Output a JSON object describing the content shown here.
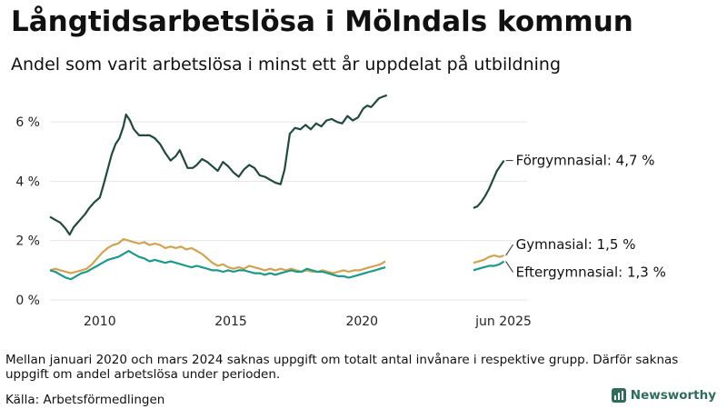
{
  "title": "Långtidsarbetslösa i Mölndals kommun",
  "subtitle": "Andel som varit arbetslösa i minst ett år uppdelat på utbildning",
  "footnote": "Mellan januari 2020 och mars 2024 saknas uppgift om totalt antal invånare i respektive grupp. Därför saknas uppgift om andel arbetslösa under perioden.",
  "source": "Källa: Arbetsförmedlingen",
  "brand": "Newsworthy",
  "colors": {
    "forgymnasial": "#1f4a40",
    "gymnasial": "#d4a24c",
    "eftergymnasial": "#1a9a8a",
    "brand": "#2c6e5a"
  },
  "chart_data": {
    "type": "line",
    "x_ticks": [
      {
        "x": 2010.0,
        "label": "2010"
      },
      {
        "x": 2015.0,
        "label": "2015"
      },
      {
        "x": 2020.0,
        "label": "2020"
      },
      {
        "x": 2025.4,
        "label": "jun 2025"
      }
    ],
    "y_ticks": [
      {
        "y": 0,
        "label": "0 %"
      },
      {
        "y": 2,
        "label": "2 %"
      },
      {
        "y": 4,
        "label": "4 %"
      },
      {
        "y": 6,
        "label": "6 %"
      }
    ],
    "xlim": [
      2008.1,
      2026.3
    ],
    "ylim": [
      0,
      7.2
    ],
    "grid": true,
    "series": [
      {
        "key": "forgymnasial",
        "label": "Förgymnasial: 4,7 %",
        "segments": [
          [
            [
              2008.1,
              2.8
            ],
            [
              2008.3,
              2.7
            ],
            [
              2008.5,
              2.6
            ],
            [
              2008.7,
              2.4
            ],
            [
              2008.85,
              2.2
            ],
            [
              2009.0,
              2.45
            ],
            [
              2009.15,
              2.6
            ],
            [
              2009.3,
              2.75
            ],
            [
              2009.45,
              2.9
            ],
            [
              2009.6,
              3.1
            ],
            [
              2009.8,
              3.3
            ],
            [
              2010.0,
              3.45
            ],
            [
              2010.15,
              3.9
            ],
            [
              2010.3,
              4.4
            ],
            [
              2010.45,
              4.9
            ],
            [
              2010.6,
              5.25
            ],
            [
              2010.75,
              5.45
            ],
            [
              2010.9,
              5.85
            ],
            [
              2011.0,
              6.25
            ],
            [
              2011.15,
              6.05
            ],
            [
              2011.3,
              5.75
            ],
            [
              2011.5,
              5.55
            ],
            [
              2011.7,
              5.55
            ],
            [
              2011.9,
              5.55
            ],
            [
              2012.1,
              5.45
            ],
            [
              2012.3,
              5.25
            ],
            [
              2012.5,
              4.95
            ],
            [
              2012.7,
              4.7
            ],
            [
              2012.9,
              4.85
            ],
            [
              2013.05,
              5.05
            ],
            [
              2013.2,
              4.75
            ],
            [
              2013.35,
              4.45
            ],
            [
              2013.55,
              4.45
            ],
            [
              2013.7,
              4.55
            ],
            [
              2013.9,
              4.75
            ],
            [
              2014.1,
              4.65
            ],
            [
              2014.3,
              4.5
            ],
            [
              2014.5,
              4.35
            ],
            [
              2014.7,
              4.65
            ],
            [
              2014.9,
              4.5
            ],
            [
              2015.1,
              4.3
            ],
            [
              2015.3,
              4.15
            ],
            [
              2015.5,
              4.4
            ],
            [
              2015.7,
              4.55
            ],
            [
              2015.9,
              4.45
            ],
            [
              2016.1,
              4.2
            ],
            [
              2016.3,
              4.15
            ],
            [
              2016.5,
              4.05
            ],
            [
              2016.7,
              3.95
            ],
            [
              2016.9,
              3.9
            ],
            [
              2017.05,
              4.4
            ],
            [
              2017.25,
              5.6
            ],
            [
              2017.45,
              5.8
            ],
            [
              2017.65,
              5.75
            ],
            [
              2017.85,
              5.9
            ],
            [
              2018.05,
              5.75
            ],
            [
              2018.25,
              5.95
            ],
            [
              2018.45,
              5.85
            ],
            [
              2018.65,
              6.05
            ],
            [
              2018.85,
              6.1
            ],
            [
              2019.05,
              6.0
            ],
            [
              2019.25,
              5.95
            ],
            [
              2019.45,
              6.2
            ],
            [
              2019.65,
              6.05
            ],
            [
              2019.85,
              6.15
            ],
            [
              2020.05,
              6.45
            ],
            [
              2020.2,
              6.55
            ],
            [
              2020.35,
              6.5
            ],
            [
              2020.5,
              6.65
            ],
            [
              2020.65,
              6.8
            ],
            [
              2020.8,
              6.85
            ],
            [
              2020.95,
              6.9
            ]
          ],
          [
            [
              2024.25,
              3.1
            ],
            [
              2024.4,
              3.15
            ],
            [
              2024.55,
              3.3
            ],
            [
              2024.7,
              3.5
            ],
            [
              2024.85,
              3.75
            ],
            [
              2025.0,
              4.05
            ],
            [
              2025.15,
              4.35
            ],
            [
              2025.3,
              4.55
            ],
            [
              2025.42,
              4.7
            ]
          ]
        ]
      },
      {
        "key": "gymnasial",
        "label": "Gymnasial: 1,5 %",
        "segments": [
          [
            [
              2008.1,
              1.0
            ],
            [
              2008.3,
              1.05
            ],
            [
              2008.5,
              1.0
            ],
            [
              2008.7,
              0.95
            ],
            [
              2008.9,
              0.9
            ],
            [
              2009.1,
              0.95
            ],
            [
              2009.3,
              1.0
            ],
            [
              2009.5,
              1.05
            ],
            [
              2009.7,
              1.2
            ],
            [
              2009.9,
              1.4
            ],
            [
              2010.1,
              1.6
            ],
            [
              2010.3,
              1.75
            ],
            [
              2010.5,
              1.85
            ],
            [
              2010.7,
              1.9
            ],
            [
              2010.9,
              2.05
            ],
            [
              2011.1,
              2.0
            ],
            [
              2011.3,
              1.95
            ],
            [
              2011.5,
              1.9
            ],
            [
              2011.7,
              1.95
            ],
            [
              2011.9,
              1.85
            ],
            [
              2012.1,
              1.9
            ],
            [
              2012.3,
              1.85
            ],
            [
              2012.5,
              1.75
            ],
            [
              2012.7,
              1.8
            ],
            [
              2012.9,
              1.75
            ],
            [
              2013.1,
              1.8
            ],
            [
              2013.3,
              1.7
            ],
            [
              2013.5,
              1.75
            ],
            [
              2013.7,
              1.65
            ],
            [
              2013.9,
              1.55
            ],
            [
              2014.1,
              1.4
            ],
            [
              2014.3,
              1.25
            ],
            [
              2014.5,
              1.15
            ],
            [
              2014.7,
              1.2
            ],
            [
              2014.9,
              1.1
            ],
            [
              2015.1,
              1.05
            ],
            [
              2015.3,
              1.1
            ],
            [
              2015.5,
              1.05
            ],
            [
              2015.7,
              1.15
            ],
            [
              2015.9,
              1.1
            ],
            [
              2016.1,
              1.05
            ],
            [
              2016.3,
              1.0
            ],
            [
              2016.5,
              1.05
            ],
            [
              2016.7,
              1.0
            ],
            [
              2016.9,
              1.05
            ],
            [
              2017.1,
              1.0
            ],
            [
              2017.3,
              1.05
            ],
            [
              2017.5,
              1.0
            ],
            [
              2017.7,
              0.95
            ],
            [
              2017.9,
              1.0
            ],
            [
              2018.1,
              0.95
            ],
            [
              2018.3,
              0.95
            ],
            [
              2018.5,
              1.0
            ],
            [
              2018.7,
              0.95
            ],
            [
              2018.9,
              0.9
            ],
            [
              2019.1,
              0.95
            ],
            [
              2019.3,
              1.0
            ],
            [
              2019.5,
              0.95
            ],
            [
              2019.7,
              1.0
            ],
            [
              2019.9,
              1.0
            ],
            [
              2020.1,
              1.05
            ],
            [
              2020.3,
              1.1
            ],
            [
              2020.5,
              1.15
            ],
            [
              2020.7,
              1.2
            ],
            [
              2020.9,
              1.3
            ]
          ],
          [
            [
              2024.25,
              1.25
            ],
            [
              2024.45,
              1.3
            ],
            [
              2024.65,
              1.35
            ],
            [
              2024.85,
              1.45
            ],
            [
              2025.05,
              1.5
            ],
            [
              2025.25,
              1.45
            ],
            [
              2025.42,
              1.5
            ]
          ]
        ]
      },
      {
        "key": "eftergymnasial",
        "label": "Eftergymnasial: 1,3 %",
        "segments": [
          [
            [
              2008.1,
              1.0
            ],
            [
              2008.3,
              0.95
            ],
            [
              2008.5,
              0.85
            ],
            [
              2008.7,
              0.75
            ],
            [
              2008.9,
              0.7
            ],
            [
              2009.1,
              0.8
            ],
            [
              2009.3,
              0.9
            ],
            [
              2009.5,
              0.95
            ],
            [
              2009.7,
              1.05
            ],
            [
              2009.9,
              1.15
            ],
            [
              2010.1,
              1.25
            ],
            [
              2010.3,
              1.35
            ],
            [
              2010.5,
              1.4
            ],
            [
              2010.7,
              1.45
            ],
            [
              2010.9,
              1.55
            ],
            [
              2011.1,
              1.65
            ],
            [
              2011.3,
              1.55
            ],
            [
              2011.5,
              1.45
            ],
            [
              2011.7,
              1.4
            ],
            [
              2011.9,
              1.3
            ],
            [
              2012.1,
              1.35
            ],
            [
              2012.3,
              1.3
            ],
            [
              2012.5,
              1.25
            ],
            [
              2012.7,
              1.3
            ],
            [
              2012.9,
              1.25
            ],
            [
              2013.1,
              1.2
            ],
            [
              2013.3,
              1.15
            ],
            [
              2013.5,
              1.1
            ],
            [
              2013.7,
              1.15
            ],
            [
              2013.9,
              1.1
            ],
            [
              2014.1,
              1.05
            ],
            [
              2014.3,
              1.0
            ],
            [
              2014.5,
              1.0
            ],
            [
              2014.7,
              0.95
            ],
            [
              2014.9,
              1.0
            ],
            [
              2015.1,
              0.95
            ],
            [
              2015.3,
              1.0
            ],
            [
              2015.5,
              1.0
            ],
            [
              2015.7,
              0.95
            ],
            [
              2015.9,
              0.9
            ],
            [
              2016.1,
              0.9
            ],
            [
              2016.3,
              0.85
            ],
            [
              2016.5,
              0.9
            ],
            [
              2016.7,
              0.85
            ],
            [
              2016.9,
              0.9
            ],
            [
              2017.1,
              0.95
            ],
            [
              2017.3,
              1.0
            ],
            [
              2017.5,
              0.95
            ],
            [
              2017.7,
              0.95
            ],
            [
              2017.9,
              1.05
            ],
            [
              2018.1,
              1.0
            ],
            [
              2018.3,
              0.95
            ],
            [
              2018.5,
              0.95
            ],
            [
              2018.7,
              0.9
            ],
            [
              2018.9,
              0.85
            ],
            [
              2019.1,
              0.8
            ],
            [
              2019.3,
              0.8
            ],
            [
              2019.5,
              0.75
            ],
            [
              2019.7,
              0.8
            ],
            [
              2019.9,
              0.85
            ],
            [
              2020.1,
              0.9
            ],
            [
              2020.3,
              0.95
            ],
            [
              2020.5,
              1.0
            ],
            [
              2020.7,
              1.05
            ],
            [
              2020.9,
              1.1
            ]
          ],
          [
            [
              2024.25,
              1.0
            ],
            [
              2024.45,
              1.05
            ],
            [
              2024.65,
              1.1
            ],
            [
              2024.85,
              1.15
            ],
            [
              2025.05,
              1.15
            ],
            [
              2025.25,
              1.2
            ],
            [
              2025.42,
              1.3
            ]
          ]
        ]
      }
    ]
  }
}
